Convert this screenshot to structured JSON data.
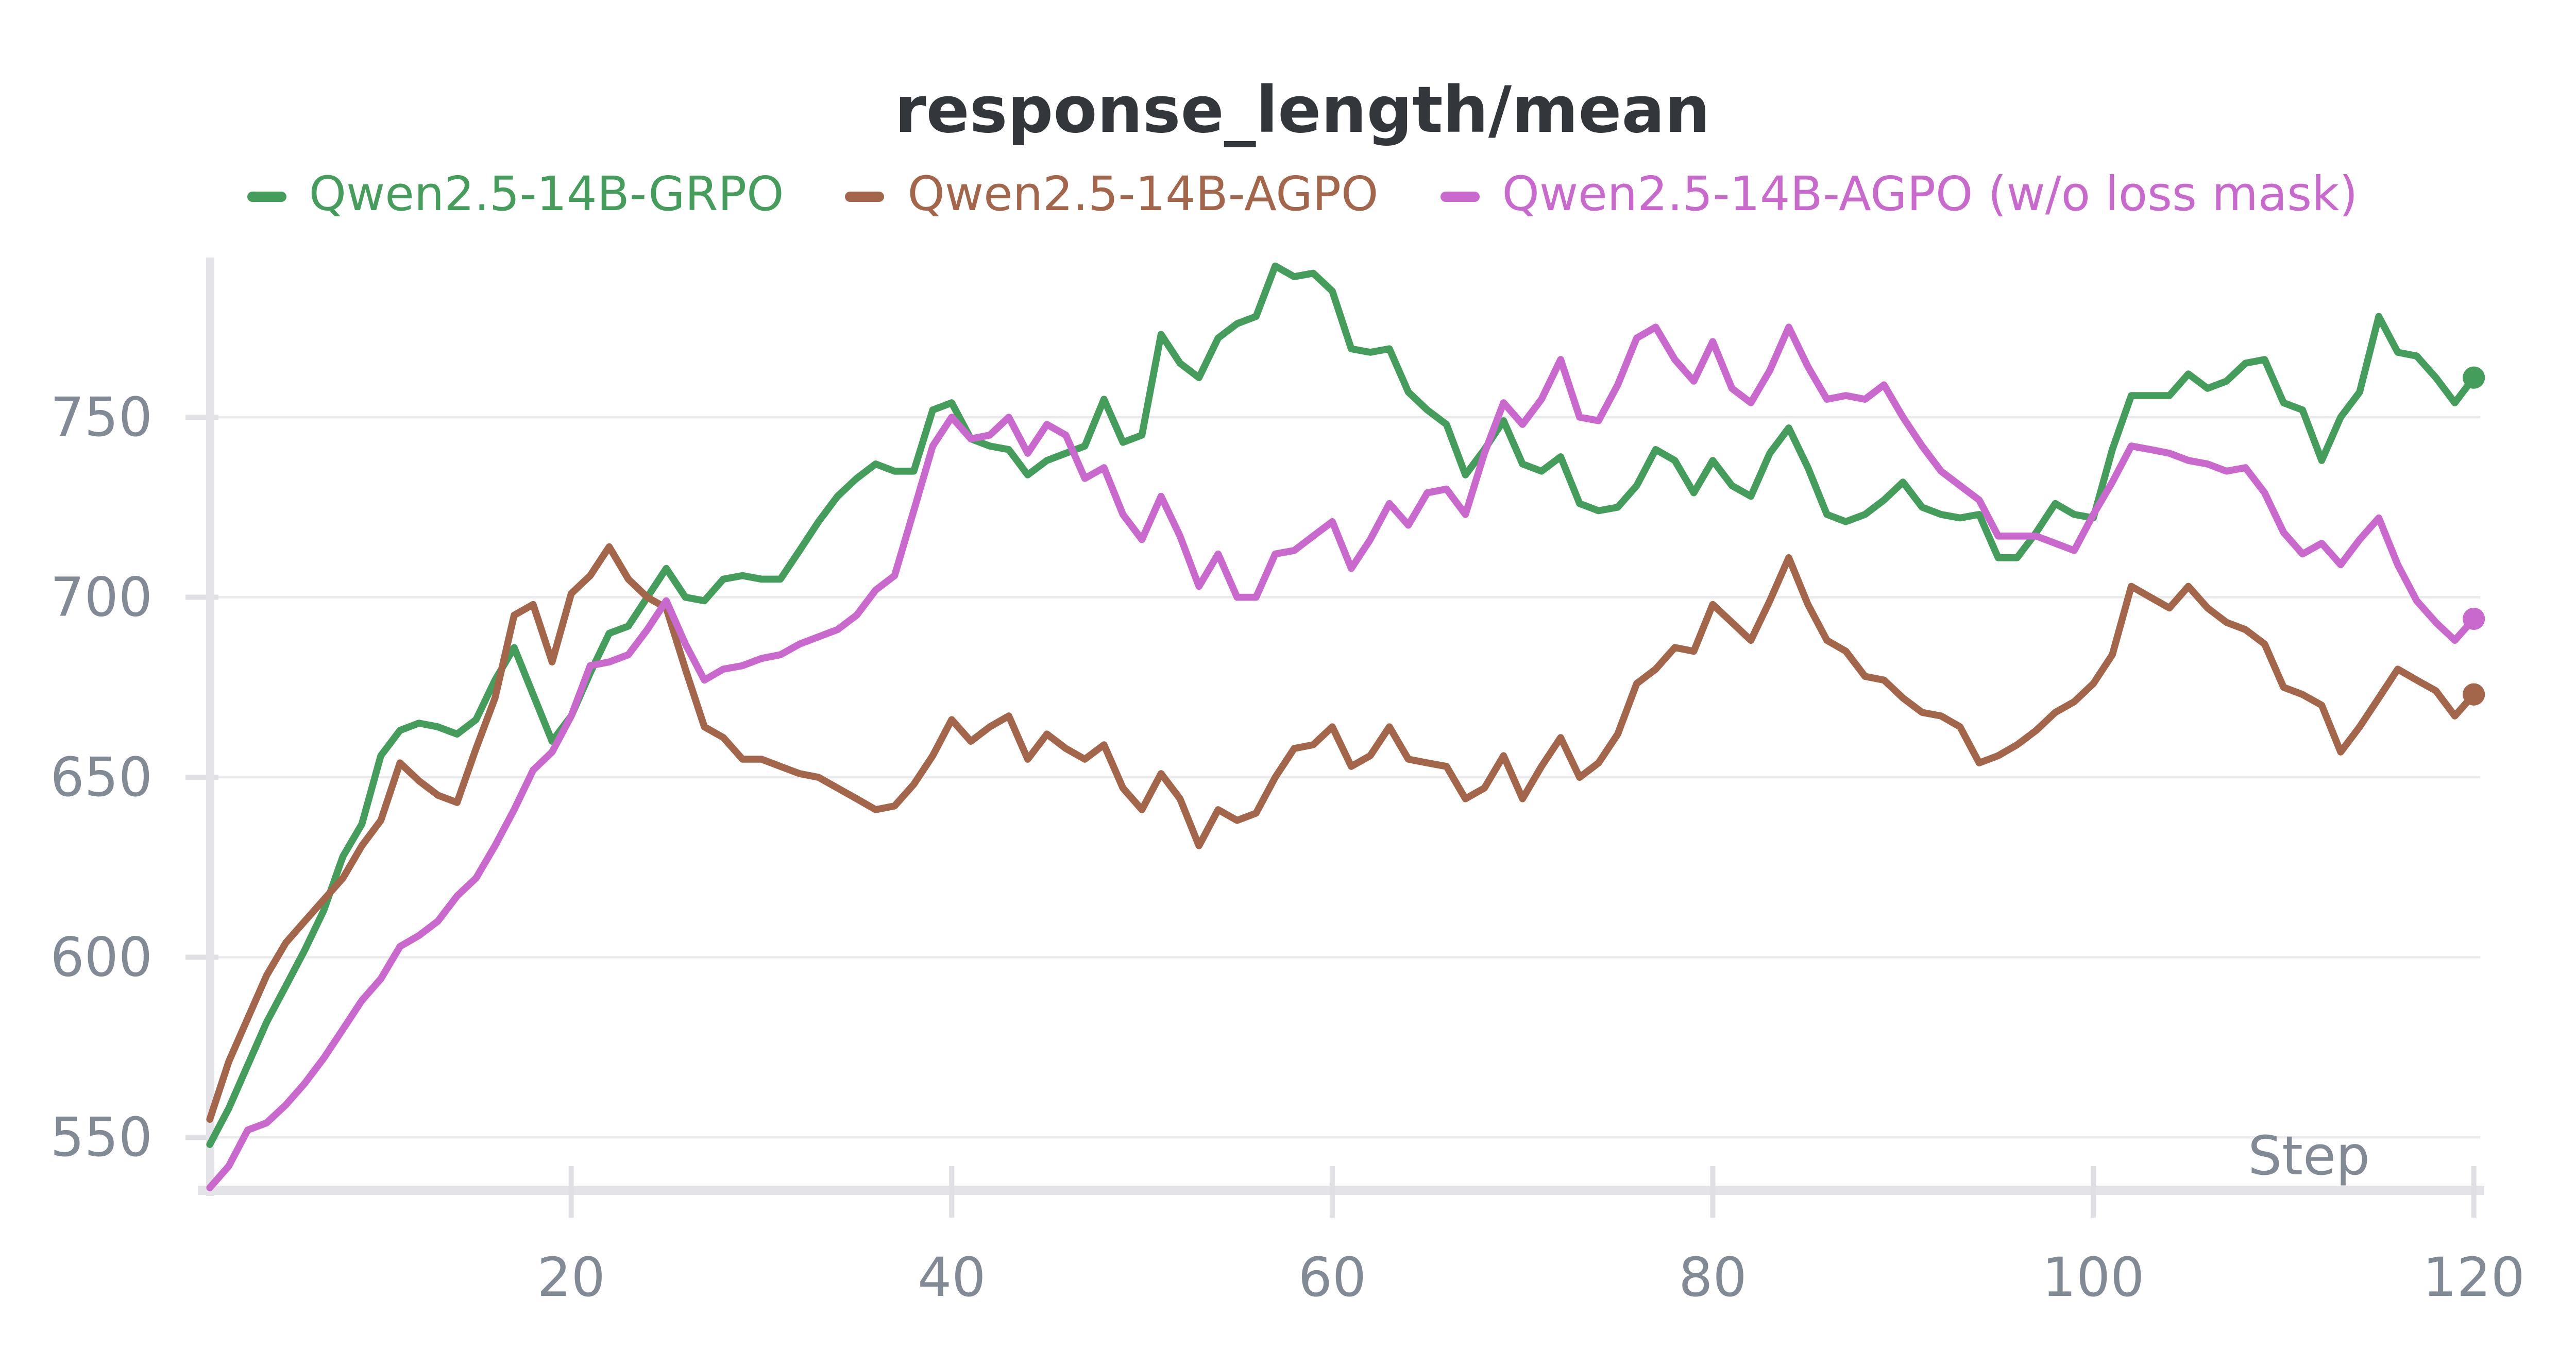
{
  "title": "response_length/mean",
  "colors": {
    "green": "#449d5b",
    "brown": "#a3664a",
    "magenta": "#c968cd",
    "title": "#33373c",
    "tick_label": "#828a95",
    "gridline": "#ebebed",
    "axis_band": "#e4e4e8",
    "tick_mark": "#dfdfe4",
    "background": "#ffffff"
  },
  "legend": [
    {
      "label": "Qwen2.5-14B-GRPO",
      "series": "green"
    },
    {
      "label": "Qwen2.5-14B-AGPO",
      "series": "brown"
    },
    {
      "label": "Qwen2.5-14B-AGPO (w/o loss mask)",
      "series": "magenta"
    }
  ],
  "axes": {
    "x": {
      "label": "Step",
      "ticks": [
        20,
        40,
        60,
        80,
        100,
        120
      ],
      "min": 1,
      "max": 120
    },
    "y": {
      "ticks": [
        550,
        600,
        650,
        700,
        750
      ],
      "min": 539,
      "max": 793
    }
  },
  "chart_data": {
    "type": "line",
    "title": "response_length/mean",
    "xlabel": "Step",
    "ylabel": "",
    "x_start": 1,
    "x_end": 120,
    "ylim": [
      539,
      793
    ],
    "grid": "horizontal",
    "legend_position": "top-center",
    "endpoint_dots": true,
    "series": [
      {
        "name": "Qwen2.5-14B-GRPO",
        "color_key": "green",
        "values": [
          548,
          558,
          570,
          582,
          592,
          602,
          613,
          628,
          637,
          656,
          663,
          665,
          664,
          662,
          666,
          677,
          686,
          673,
          660,
          667,
          679,
          690,
          692,
          700,
          708,
          700,
          699,
          705,
          706,
          705,
          705,
          713,
          721,
          728,
          733,
          737,
          735,
          735,
          752,
          754,
          744,
          742,
          741,
          734,
          738,
          740,
          742,
          755,
          743,
          745,
          773,
          765,
          761,
          772,
          776,
          778,
          792,
          789,
          790,
          785,
          769,
          768,
          769,
          757,
          752,
          748,
          734,
          741,
          749,
          737,
          735,
          739,
          726,
          724,
          725,
          731,
          741,
          738,
          729,
          738,
          731,
          728,
          740,
          747,
          736,
          723,
          721,
          723,
          727,
          732,
          725,
          723,
          722,
          723,
          711,
          711,
          718,
          726,
          723,
          722,
          741,
          756,
          756,
          756,
          762,
          758,
          760,
          765,
          766,
          754,
          752,
          738,
          750,
          757,
          778,
          768,
          767,
          761,
          754,
          761
        ]
      },
      {
        "name": "Qwen2.5-14B-AGPO",
        "color_key": "brown",
        "values": [
          555,
          571,
          583,
          595,
          604,
          610,
          616,
          622,
          631,
          638,
          654,
          649,
          645,
          643,
          658,
          672,
          695,
          698,
          682,
          701,
          706,
          714,
          705,
          700,
          697,
          680,
          664,
          661,
          655,
          655,
          653,
          651,
          650,
          647,
          644,
          641,
          642,
          648,
          656,
          666,
          660,
          664,
          667,
          655,
          662,
          658,
          655,
          659,
          647,
          641,
          651,
          644,
          631,
          641,
          638,
          640,
          650,
          658,
          659,
          664,
          653,
          656,
          664,
          655,
          654,
          653,
          644,
          647,
          656,
          644,
          653,
          661,
          650,
          654,
          662,
          676,
          680,
          686,
          685,
          698,
          693,
          688,
          699,
          711,
          698,
          688,
          685,
          678,
          677,
          672,
          668,
          667,
          664,
          654,
          656,
          659,
          663,
          668,
          671,
          676,
          684,
          703,
          700,
          697,
          703,
          697,
          693,
          691,
          687,
          675,
          673,
          670,
          657,
          664,
          672,
          680,
          677,
          674,
          667,
          673
        ]
      },
      {
        "name": "Qwen2.5-14B-AGPO (w/o loss mask)",
        "color_key": "magenta",
        "values": [
          536,
          542,
          552,
          554,
          559,
          565,
          572,
          580,
          588,
          594,
          603,
          606,
          610,
          617,
          622,
          631,
          641,
          652,
          657,
          667,
          681,
          682,
          684,
          691,
          699,
          687,
          677,
          680,
          681,
          683,
          684,
          687,
          689,
          691,
          695,
          702,
          706,
          724,
          742,
          750,
          744,
          745,
          750,
          740,
          748,
          745,
          733,
          736,
          723,
          716,
          728,
          717,
          703,
          712,
          700,
          700,
          712,
          713,
          717,
          721,
          708,
          716,
          726,
          720,
          729,
          730,
          723,
          740,
          754,
          748,
          755,
          766,
          750,
          749,
          759,
          772,
          775,
          766,
          760,
          771,
          758,
          754,
          763,
          775,
          764,
          755,
          756,
          755,
          759,
          750,
          742,
          735,
          731,
          727,
          717,
          717,
          717,
          715,
          713,
          723,
          732,
          742,
          741,
          740,
          738,
          737,
          735,
          736,
          729,
          718,
          712,
          715,
          709,
          716,
          722,
          709,
          699,
          693,
          688,
          694
        ]
      }
    ]
  }
}
